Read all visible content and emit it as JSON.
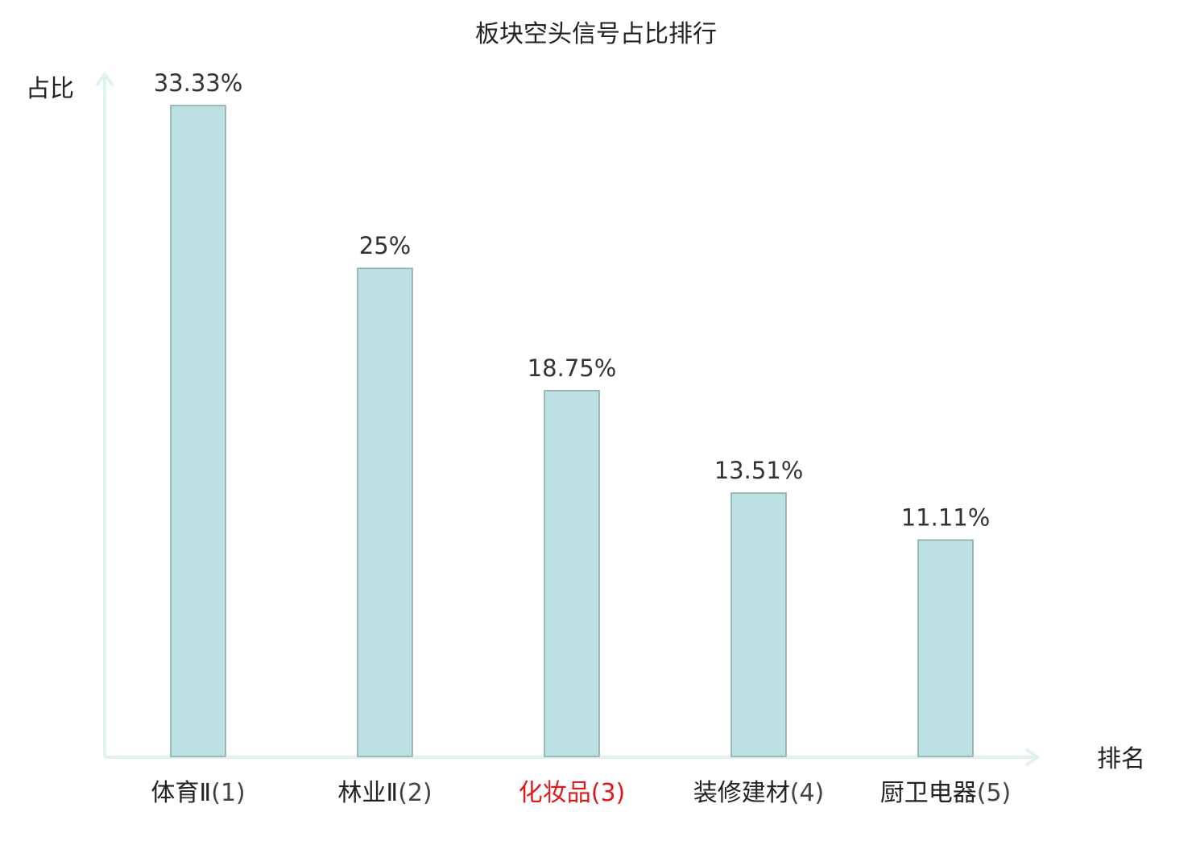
{
  "chart_data": {
    "type": "bar",
    "title": "板块空头信号占比排行",
    "ylabel": "占比",
    "xlabel": "排名",
    "categories": [
      "体育Ⅱ(1)",
      "林业Ⅱ(2)",
      "化妆品(3)",
      "装修建材(4)",
      "厨卫电器(5)"
    ],
    "values": [
      33.33,
      25,
      18.75,
      13.51,
      11.11
    ],
    "value_labels": [
      "33.33%",
      "25%",
      "18.75%",
      "13.51%",
      "11.11%"
    ],
    "category_label_parts": [
      {
        "name": "体育Ⅱ",
        "rank": "(1)"
      },
      {
        "name": "林业Ⅱ",
        "rank": "(2)"
      },
      {
        "name": "化妆品",
        "rank": "(3)"
      },
      {
        "name": "装修建材",
        "rank": "(4)"
      },
      {
        "name": "厨卫电器",
        "rank": "(5)"
      }
    ],
    "highlight_index": 2,
    "ylim": [
      0,
      33.33
    ],
    "grid": false,
    "colors": {
      "bar_fill": "#bde0e2",
      "bar_stroke": "#86a6a8",
      "axis": "#dff2ef",
      "highlight_text": "#e0191b"
    }
  }
}
